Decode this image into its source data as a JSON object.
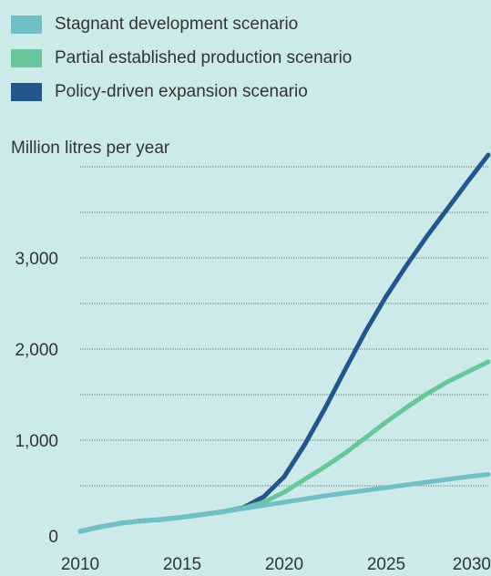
{
  "chart_data": {
    "type": "line",
    "title": "",
    "xlabel": "",
    "ylabel": "Million litres per year",
    "xlim": [
      2010,
      2030
    ],
    "ylim": [
      0,
      4000
    ],
    "x_ticks": [
      "2010",
      "2015",
      "2020",
      "2025",
      "2030"
    ],
    "y_ticks": [
      "0",
      "1,000",
      "2,000",
      "3,000"
    ],
    "grid": "horizontal dotted",
    "legend": "top-left",
    "x": [
      2010,
      2011,
      2012,
      2013,
      2014,
      2015,
      2016,
      2017,
      2018,
      2019,
      2020,
      2021,
      2022,
      2023,
      2024,
      2025,
      2026,
      2027,
      2028,
      2029,
      2030
    ],
    "series": [
      {
        "name": "Stagnant development scenario",
        "color": "#6fbfc4",
        "values": [
          0,
          50,
          90,
          115,
          130,
          155,
          185,
          215,
          250,
          285,
          320,
          355,
          390,
          420,
          450,
          480,
          510,
          540,
          570,
          600,
          625
        ]
      },
      {
        "name": "Partial established production scenario",
        "color": "#69c59b",
        "values": [
          0,
          50,
          90,
          115,
          130,
          155,
          185,
          215,
          255,
          320,
          430,
          570,
          710,
          860,
          1030,
          1200,
          1360,
          1510,
          1640,
          1750,
          1860
        ]
      },
      {
        "name": "Policy-driven expansion scenario",
        "color": "#23578c",
        "values": [
          0,
          50,
          90,
          115,
          130,
          155,
          185,
          215,
          260,
          380,
          600,
          950,
          1350,
          1780,
          2200,
          2580,
          2920,
          3240,
          3540,
          3840,
          4130
        ]
      }
    ]
  }
}
